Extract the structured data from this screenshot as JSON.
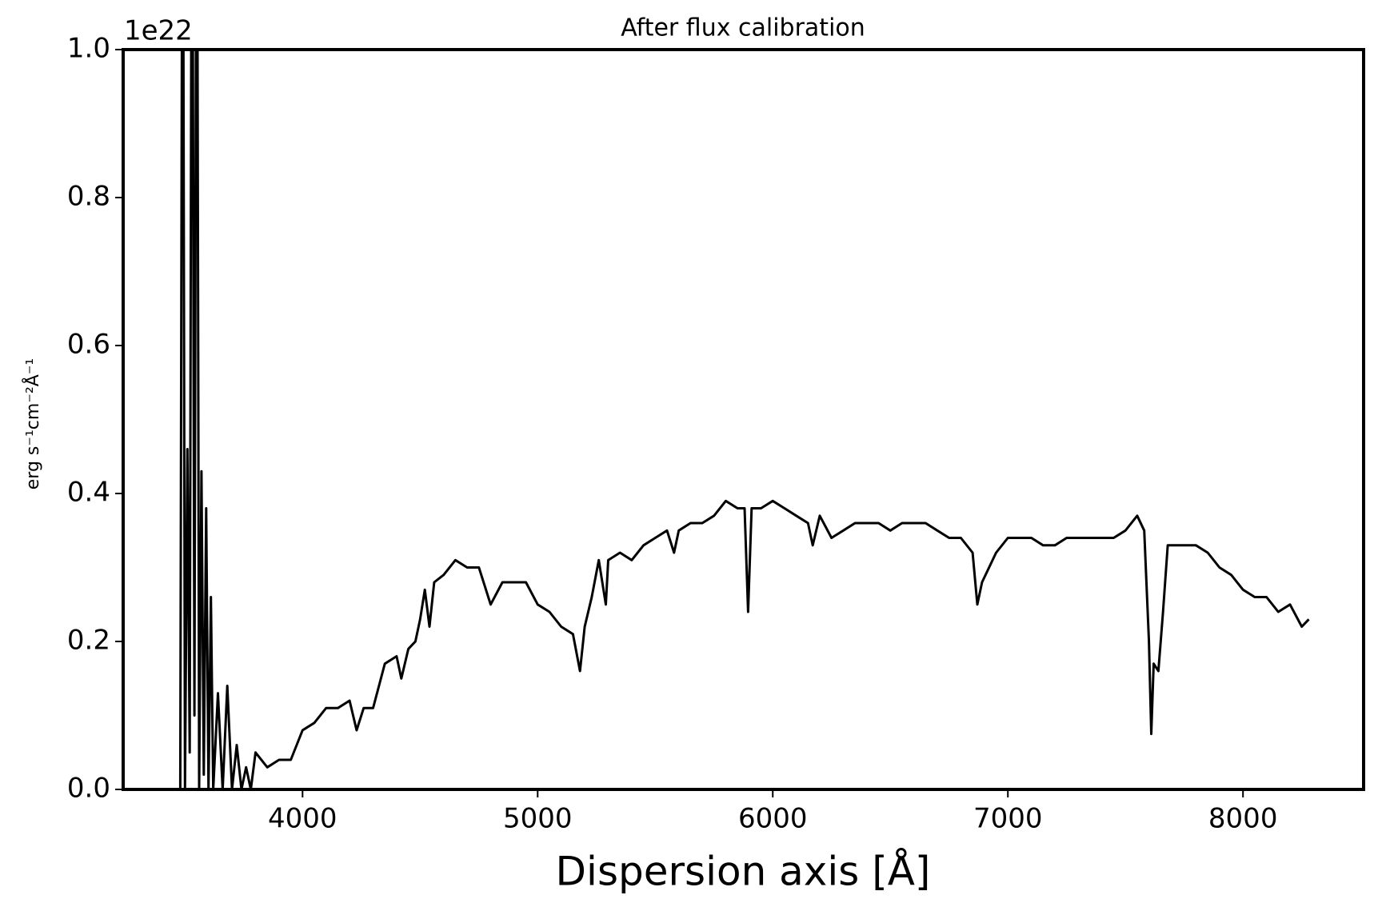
{
  "chart_data": {
    "type": "line",
    "title": "After flux calibration",
    "xlabel": "Dispersion axis [Å]",
    "ylabel": "erg s⁻¹cm⁻²Å⁻¹",
    "y_offset_text": "1e22",
    "xlim": [
      3237,
      8513
    ],
    "ylim": [
      0,
      1
    ],
    "xticks": [
      4000,
      5000,
      6000,
      7000,
      8000
    ],
    "yticks": [
      {
        "value": 0,
        "label": "0.0"
      },
      {
        "value": 0.2,
        "label": "0.2"
      },
      {
        "value": 0.4,
        "label": "0.4"
      },
      {
        "value": 0.6,
        "label": "0.6"
      },
      {
        "value": 0.8,
        "label": "0.8"
      },
      {
        "value": 1,
        "label": "1.0"
      }
    ],
    "x": [
      3480,
      3490,
      3500,
      3510,
      3520,
      3530,
      3540,
      3550,
      3560,
      3570,
      3580,
      3590,
      3600,
      3610,
      3620,
      3640,
      3660,
      3680,
      3700,
      3720,
      3740,
      3760,
      3780,
      3800,
      3850,
      3900,
      3950,
      4000,
      4050,
      4100,
      4150,
      4200,
      4230,
      4260,
      4300,
      4350,
      4400,
      4420,
      4450,
      4480,
      4500,
      4520,
      4540,
      4560,
      4600,
      4650,
      4700,
      4750,
      4800,
      4850,
      4900,
      4950,
      5000,
      5050,
      5100,
      5150,
      5180,
      5200,
      5230,
      5260,
      5290,
      5300,
      5350,
      5400,
      5450,
      5500,
      5550,
      5580,
      5600,
      5650,
      5700,
      5750,
      5800,
      5850,
      5880,
      5895,
      5910,
      5950,
      6000,
      6050,
      6100,
      6150,
      6170,
      6200,
      6250,
      6300,
      6350,
      6400,
      6450,
      6500,
      6550,
      6600,
      6650,
      6700,
      6750,
      6800,
      6850,
      6870,
      6890,
      6950,
      7000,
      7050,
      7100,
      7150,
      7200,
      7250,
      7300,
      7350,
      7400,
      7450,
      7500,
      7550,
      7580,
      7600,
      7610,
      7620,
      7640,
      7660,
      7680,
      7750,
      7800,
      7850,
      7900,
      7950,
      8000,
      8050,
      8100,
      8150,
      8200,
      8250,
      8280
    ],
    "series": [
      {
        "color": "#000000",
        "values": [
          0.0,
          1.5,
          0.0,
          0.46,
          0.05,
          1.5,
          0.1,
          1.5,
          0.0,
          0.43,
          0.02,
          0.38,
          0.0,
          0.26,
          0.0,
          0.13,
          0.0,
          0.14,
          0.0,
          0.06,
          0.0,
          0.03,
          0.0,
          0.05,
          0.03,
          0.04,
          0.04,
          0.08,
          0.09,
          0.11,
          0.11,
          0.12,
          0.08,
          0.11,
          0.11,
          0.17,
          0.18,
          0.15,
          0.19,
          0.2,
          0.23,
          0.27,
          0.22,
          0.28,
          0.29,
          0.31,
          0.3,
          0.3,
          0.25,
          0.28,
          0.28,
          0.28,
          0.25,
          0.24,
          0.22,
          0.21,
          0.16,
          0.22,
          0.26,
          0.31,
          0.25,
          0.31,
          0.32,
          0.31,
          0.33,
          0.34,
          0.35,
          0.32,
          0.35,
          0.36,
          0.36,
          0.37,
          0.39,
          0.38,
          0.38,
          0.24,
          0.38,
          0.38,
          0.39,
          0.38,
          0.37,
          0.36,
          0.33,
          0.37,
          0.34,
          0.35,
          0.36,
          0.36,
          0.36,
          0.35,
          0.36,
          0.36,
          0.36,
          0.35,
          0.34,
          0.34,
          0.32,
          0.25,
          0.28,
          0.32,
          0.34,
          0.34,
          0.34,
          0.33,
          0.33,
          0.34,
          0.34,
          0.34,
          0.34,
          0.34,
          0.35,
          0.37,
          0.35,
          0.2,
          0.075,
          0.17,
          0.16,
          0.24,
          0.33,
          0.33,
          0.33,
          0.32,
          0.3,
          0.29,
          0.27,
          0.26,
          0.26,
          0.24,
          0.25,
          0.22,
          0.23
        ]
      }
    ]
  }
}
